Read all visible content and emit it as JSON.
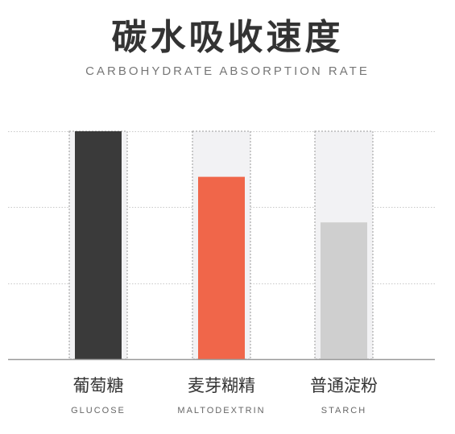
{
  "header": {
    "title": "碳水吸收速度",
    "subtitle": "CARBOHYDRATE ABSORPTION RATE"
  },
  "chart_data": {
    "type": "bar",
    "title": "碳水吸收速度",
    "subtitle": "CARBOHYDRATE ABSORPTION RATE",
    "categories": [
      {
        "label_cn": "葡萄糖",
        "label_en": "GLUCOSE"
      },
      {
        "label_cn": "麦芽糊精",
        "label_en": "MALTODEXTRIN"
      },
      {
        "label_cn": "普通淀粉",
        "label_en": "STARCH"
      }
    ],
    "values": [
      1.0,
      0.8,
      0.6
    ],
    "ylim": [
      0,
      1
    ],
    "grid": true,
    "colors": {
      "bars": [
        "#3a3a3a",
        "#f0664a",
        "#cfcfcf"
      ],
      "track": "#f2f2f4",
      "grid": "#c8c8c8",
      "axis": "#999999"
    }
  }
}
